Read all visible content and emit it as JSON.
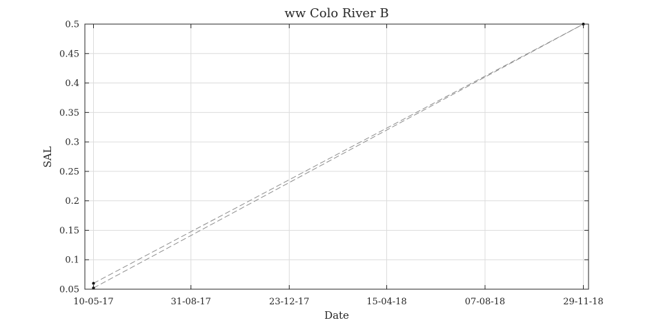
{
  "chart_data": {
    "type": "line",
    "title": "ww Colo River B",
    "xlabel": "Date",
    "ylabel": "SAL",
    "x_ticks": [
      "10-05-17",
      "31-08-17",
      "23-12-17",
      "15-04-18",
      "07-08-18",
      "29-11-18"
    ],
    "xlim": [
      "2017-04-30",
      "2018-12-05"
    ],
    "ylim": [
      0.05,
      0.5
    ],
    "y_ticks": [
      "0.05",
      "0.1",
      "0.15",
      "0.2",
      "0.25",
      "0.3",
      "0.35",
      "0.4",
      "0.45",
      "0.5"
    ],
    "grid": true,
    "series": [
      {
        "color": "#8c8c8c",
        "style": "dashed",
        "x": [
          "2017-05-10",
          "2018-11-29"
        ],
        "y": [
          0.06,
          0.5
        ]
      },
      {
        "color": "#8c8c8c",
        "style": "dashed",
        "x": [
          "2017-05-10",
          "2018-11-29"
        ],
        "y": [
          0.052,
          0.5
        ]
      }
    ],
    "points": [
      {
        "x": "2017-05-10",
        "y": 0.06
      },
      {
        "x": "2017-05-10",
        "y": 0.052
      },
      {
        "x": "2018-11-29",
        "y": 0.5
      }
    ]
  }
}
